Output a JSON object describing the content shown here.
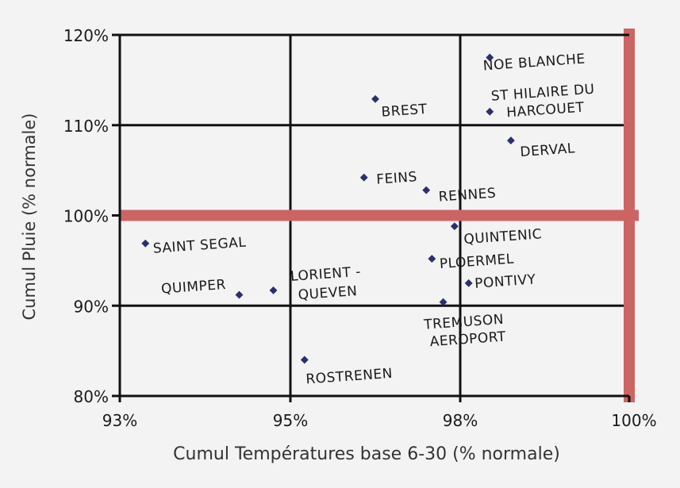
{
  "chart_data": {
    "type": "scatter",
    "title": "",
    "xlabel": "Cumul Températures base 6-30 (% normale)",
    "ylabel": "Cumul Pluie (% normale)",
    "x_ticks": [
      "93%",
      "95%",
      "98%",
      "100%"
    ],
    "y_ticks": [
      "80%",
      "90%",
      "100%",
      "110%",
      "120%"
    ],
    "ylim": [
      80,
      120
    ],
    "grid": true,
    "reference_lines": [
      {
        "axis": "y",
        "value": 100,
        "color": "#cd6464"
      },
      {
        "axis": "x",
        "value": 100,
        "color": "#cd6464"
      }
    ],
    "point_color": "#2b2f6e",
    "points": [
      {
        "label": "NOE BLANCHE",
        "x": 98.35,
        "y": 117.5
      },
      {
        "label": "ST HILAIRE DU HARCOUET",
        "x": 98.35,
        "y": 111.5
      },
      {
        "label": "BREST",
        "x": 96.5,
        "y": 112.9
      },
      {
        "label": "DERVAL",
        "x": 98.6,
        "y": 108.3
      },
      {
        "label": "FEINS",
        "x": 96.3,
        "y": 104.2
      },
      {
        "label": "RENNES",
        "x": 97.4,
        "y": 102.8
      },
      {
        "label": "QUINTENIC",
        "x": 97.9,
        "y": 98.8
      },
      {
        "label": "SAINT SEGAL",
        "x": 93.3,
        "y": 96.9
      },
      {
        "label": "PLOERMEL",
        "x": 97.5,
        "y": 95.2
      },
      {
        "label": "PONTIVY",
        "x": 98.1,
        "y": 92.5
      },
      {
        "label": "LORIENT - QUEVEN",
        "x": 94.8,
        "y": 91.7
      },
      {
        "label": "QUIMPER",
        "x": 94.4,
        "y": 91.2
      },
      {
        "label": "TREMUSON AEROPORT",
        "x": 97.7,
        "y": 90.4
      },
      {
        "label": "ROSTRENEN",
        "x": 95.25,
        "y": 84.0
      }
    ]
  }
}
